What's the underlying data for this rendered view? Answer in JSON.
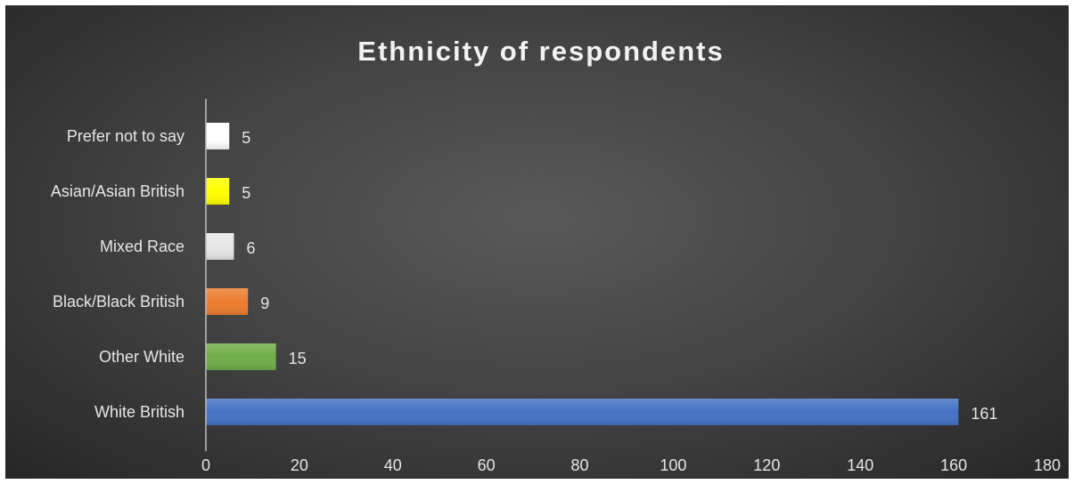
{
  "chart_data": {
    "type": "bar",
    "orientation": "horizontal",
    "title": "Ethnicity of respondents",
    "xlabel": "",
    "ylabel": "",
    "categories": [
      "White British",
      "Other White",
      "Black/Black British",
      "Mixed Race",
      "Asian/Asian British",
      "Prefer not to say"
    ],
    "values": [
      161,
      15,
      9,
      6,
      5,
      5
    ],
    "colors": [
      "#4472C4",
      "#70AD47",
      "#ED7D31",
      "#E7E6E6",
      "#FFFF00",
      "#FFFFFF"
    ],
    "data_labels": [
      "161",
      "15",
      "9",
      "6",
      "5",
      "5"
    ],
    "xlim": [
      0,
      180
    ],
    "xticks": [
      0,
      20,
      40,
      60,
      80,
      100,
      120,
      140,
      160,
      180
    ],
    "xtick_labels": [
      "0",
      "20",
      "40",
      "60",
      "80",
      "100",
      "120",
      "140",
      "160",
      "180"
    ],
    "grid": false,
    "legend": "none",
    "background_color": "#404040"
  }
}
